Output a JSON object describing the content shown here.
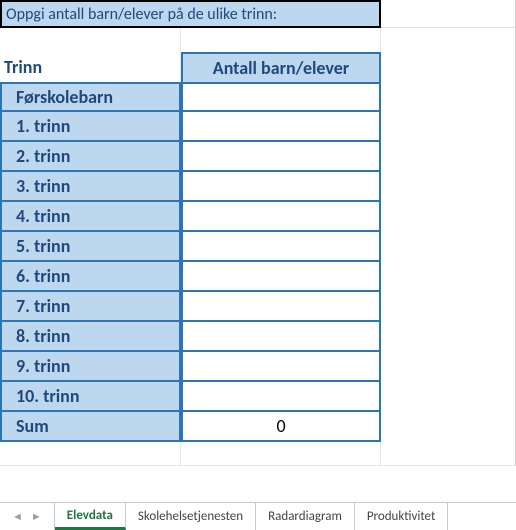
{
  "title": "Oppgi antall barn/elever på de ulike trinn:",
  "headers": {
    "trinn": "Trinn",
    "antall": "Antall barn/elever"
  },
  "rows": [
    {
      "label": "Førskolebarn",
      "value": ""
    },
    {
      "label": "1. trinn",
      "value": ""
    },
    {
      "label": "2. trinn",
      "value": ""
    },
    {
      "label": "3. trinn",
      "value": ""
    },
    {
      "label": "4. trinn",
      "value": ""
    },
    {
      "label": "5. trinn",
      "value": ""
    },
    {
      "label": "6. trinn",
      "value": ""
    },
    {
      "label": "7. trinn",
      "value": ""
    },
    {
      "label": "8. trinn",
      "value": ""
    },
    {
      "label": "9. trinn",
      "value": ""
    },
    {
      "label": "10. trinn",
      "value": ""
    },
    {
      "label": "Sum",
      "value": "0"
    }
  ],
  "tabs": {
    "items": [
      "Elevdata",
      "Skolehelsetjenesten",
      "Radardiagram",
      "Produktivitet"
    ],
    "active_index": 0
  },
  "colors": {
    "cell_bg": "#bdd7ee",
    "border": "#2e75b6",
    "text": "#1f497d",
    "excel_green": "#217346"
  }
}
